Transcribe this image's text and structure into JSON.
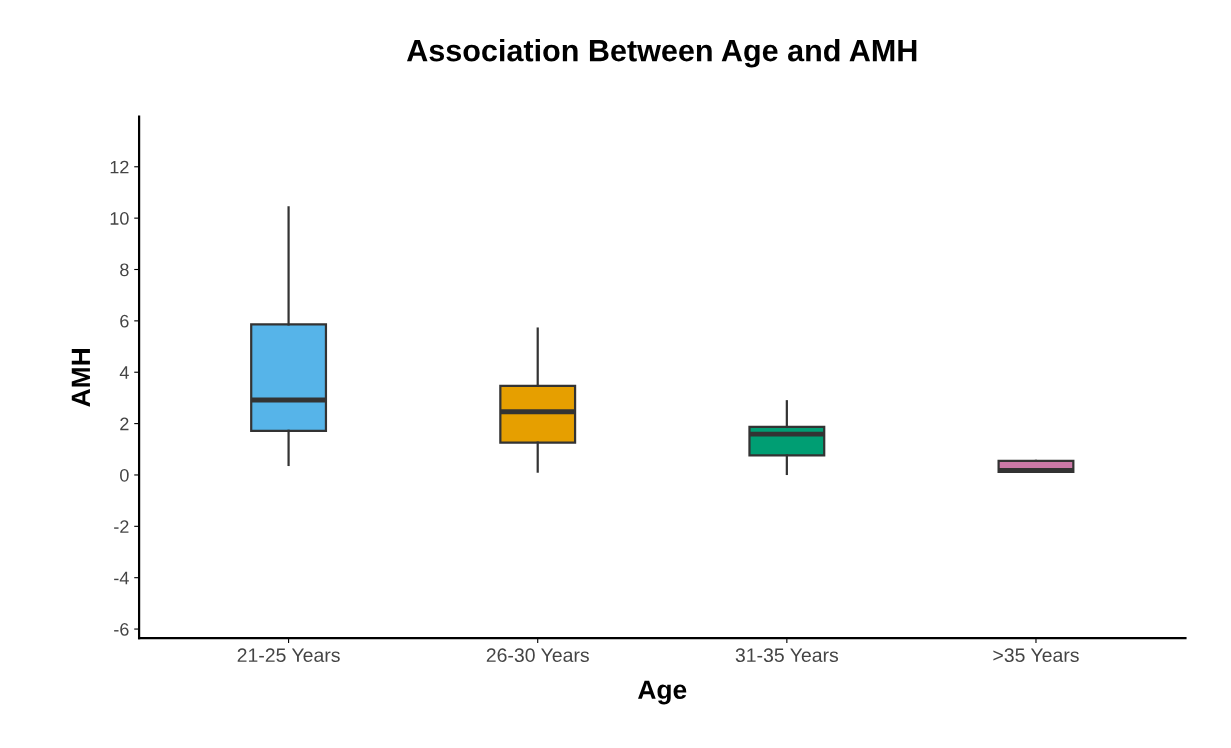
{
  "chart_data": {
    "type": "box",
    "title": "Association Between Age and AMH",
    "xlabel": "Age",
    "ylabel": "AMH",
    "categories": [
      "21-25 Years",
      "26-30 Years",
      "31-35 Years",
      ">35 Years"
    ],
    "boxes": [
      {
        "low": 0.39,
        "q1": 1.72,
        "median": 2.92,
        "q3": 5.86,
        "high": 10.42
      },
      {
        "low": 0.13,
        "q1": 1.26,
        "median": 2.46,
        "q3": 3.47,
        "high": 5.7
      },
      {
        "low": 0.04,
        "q1": 0.76,
        "median": 1.59,
        "q3": 1.87,
        "high": 2.87
      },
      {
        "low": 0.12,
        "q1": 0.12,
        "median": 0.18,
        "q3": 0.55,
        "high": 0.55
      }
    ],
    "colors": [
      "#56b4e9",
      "#e69f00",
      "#009e73",
      "#cc79a7"
    ],
    "ylim": [
      -6.35,
      13.95
    ],
    "yticks": [
      -6,
      -4,
      -2,
      0,
      2,
      4,
      6,
      8,
      10,
      12
    ],
    "grid": false,
    "legend": false
  }
}
